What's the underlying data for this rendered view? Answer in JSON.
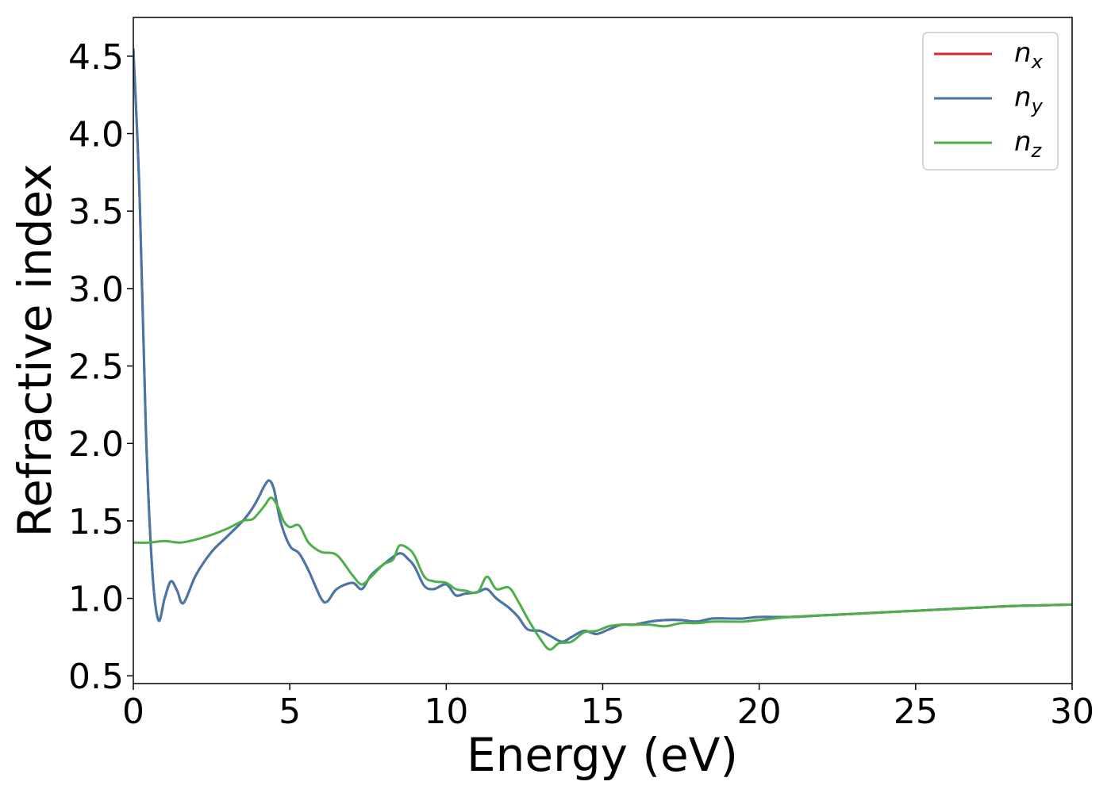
{
  "chart_data": {
    "type": "line",
    "title": "",
    "xlabel": "Energy (eV)",
    "ylabel": "Refractive index",
    "xlim": [
      0,
      30
    ],
    "ylim": [
      0.45,
      4.75
    ],
    "xticks": [
      0,
      5,
      10,
      15,
      20,
      25,
      30
    ],
    "xtick_labels": [
      "0",
      "5",
      "10",
      "15",
      "20",
      "25",
      "30"
    ],
    "yticks": [
      0.5,
      1.0,
      1.5,
      2.0,
      2.5,
      3.0,
      3.5,
      4.0,
      4.5
    ],
    "ytick_labels": [
      "0.5",
      "1.0",
      "1.5",
      "2.0",
      "2.5",
      "3.0",
      "3.5",
      "4.0",
      "4.5"
    ],
    "grid": false,
    "legend_position": "top-right",
    "series": [
      {
        "name": "n_x",
        "legend_base": "n",
        "legend_sub": "x",
        "color": "#d62728",
        "x": [
          0,
          0.2,
          0.4,
          0.6,
          0.8,
          1.0,
          1.2,
          1.4,
          1.6,
          2.0,
          2.5,
          3.0,
          3.5,
          3.8,
          4.0,
          4.2,
          4.35,
          4.5,
          4.7,
          5.0,
          5.3,
          5.6,
          6.0,
          6.2,
          6.5,
          7.0,
          7.3,
          7.6,
          8.0,
          8.5,
          8.8,
          9.0,
          9.3,
          9.6,
          10.0,
          10.3,
          10.6,
          11.0,
          11.3,
          11.6,
          12.0,
          12.3,
          12.6,
          13.0,
          13.3,
          13.7,
          14.0,
          14.4,
          14.8,
          15.2,
          15.6,
          16.0,
          16.5,
          17.0,
          17.5,
          18.0,
          18.5,
          19.0,
          19.5,
          20.0,
          21.0,
          22.0,
          23.0,
          24.0,
          25.0,
          26.0,
          27.0,
          28.0,
          29.0,
          30.0
        ],
        "y": [
          4.55,
          3.6,
          2.1,
          1.2,
          0.86,
          1.0,
          1.11,
          1.05,
          0.97,
          1.15,
          1.3,
          1.4,
          1.5,
          1.58,
          1.65,
          1.73,
          1.76,
          1.7,
          1.5,
          1.34,
          1.29,
          1.18,
          1.0,
          0.98,
          1.06,
          1.1,
          1.06,
          1.15,
          1.22,
          1.29,
          1.25,
          1.2,
          1.08,
          1.06,
          1.09,
          1.02,
          1.03,
          1.04,
          1.06,
          1.0,
          0.94,
          0.88,
          0.8,
          0.79,
          0.76,
          0.72,
          0.75,
          0.79,
          0.77,
          0.8,
          0.83,
          0.83,
          0.85,
          0.86,
          0.86,
          0.85,
          0.87,
          0.87,
          0.87,
          0.88,
          0.88,
          0.89,
          0.9,
          0.91,
          0.92,
          0.93,
          0.94,
          0.95,
          0.955,
          0.96
        ]
      },
      {
        "name": "n_y",
        "legend_base": "n",
        "legend_sub": "y",
        "color": "#4477aa",
        "x": [
          0,
          0.2,
          0.4,
          0.6,
          0.8,
          1.0,
          1.2,
          1.4,
          1.6,
          2.0,
          2.5,
          3.0,
          3.5,
          3.8,
          4.0,
          4.2,
          4.35,
          4.5,
          4.7,
          5.0,
          5.3,
          5.6,
          6.0,
          6.2,
          6.5,
          7.0,
          7.3,
          7.6,
          8.0,
          8.5,
          8.8,
          9.0,
          9.3,
          9.6,
          10.0,
          10.3,
          10.6,
          11.0,
          11.3,
          11.6,
          12.0,
          12.3,
          12.6,
          13.0,
          13.3,
          13.7,
          14.0,
          14.4,
          14.8,
          15.2,
          15.6,
          16.0,
          16.5,
          17.0,
          17.5,
          18.0,
          18.5,
          19.0,
          19.5,
          20.0,
          21.0,
          22.0,
          23.0,
          24.0,
          25.0,
          26.0,
          27.0,
          28.0,
          29.0,
          30.0
        ],
        "y": [
          4.55,
          3.6,
          2.1,
          1.2,
          0.86,
          1.0,
          1.11,
          1.05,
          0.97,
          1.15,
          1.3,
          1.4,
          1.5,
          1.58,
          1.65,
          1.73,
          1.76,
          1.7,
          1.5,
          1.34,
          1.29,
          1.18,
          1.0,
          0.98,
          1.06,
          1.1,
          1.06,
          1.15,
          1.22,
          1.29,
          1.25,
          1.2,
          1.08,
          1.06,
          1.09,
          1.02,
          1.03,
          1.04,
          1.06,
          1.0,
          0.94,
          0.88,
          0.8,
          0.79,
          0.76,
          0.72,
          0.75,
          0.79,
          0.77,
          0.8,
          0.83,
          0.83,
          0.85,
          0.86,
          0.86,
          0.85,
          0.87,
          0.87,
          0.87,
          0.88,
          0.88,
          0.89,
          0.9,
          0.91,
          0.92,
          0.93,
          0.94,
          0.95,
          0.955,
          0.96
        ]
      },
      {
        "name": "n_z",
        "legend_base": "n",
        "legend_sub": "z",
        "color": "#4daf4a",
        "x": [
          0,
          0.5,
          1.0,
          1.5,
          2.0,
          2.5,
          3.0,
          3.5,
          3.8,
          4.0,
          4.2,
          4.4,
          4.6,
          4.8,
          5.0,
          5.3,
          5.6,
          6.0,
          6.5,
          7.0,
          7.3,
          7.6,
          8.0,
          8.3,
          8.5,
          8.8,
          9.0,
          9.3,
          9.6,
          10.0,
          10.3,
          10.6,
          11.0,
          11.3,
          11.6,
          12.0,
          12.3,
          12.6,
          13.0,
          13.3,
          13.6,
          14.0,
          14.4,
          14.8,
          15.2,
          15.6,
          16.0,
          16.5,
          17.0,
          17.5,
          18.0,
          18.5,
          19.0,
          19.5,
          20.0,
          21.0,
          22.0,
          23.0,
          24.0,
          25.0,
          26.0,
          27.0,
          28.0,
          29.0,
          30.0
        ],
        "y": [
          1.36,
          1.36,
          1.37,
          1.36,
          1.38,
          1.41,
          1.45,
          1.5,
          1.51,
          1.55,
          1.6,
          1.65,
          1.6,
          1.5,
          1.46,
          1.47,
          1.36,
          1.3,
          1.28,
          1.15,
          1.09,
          1.14,
          1.22,
          1.25,
          1.34,
          1.32,
          1.27,
          1.14,
          1.11,
          1.1,
          1.06,
          1.05,
          1.04,
          1.14,
          1.06,
          1.07,
          0.98,
          0.87,
          0.74,
          0.67,
          0.71,
          0.72,
          0.78,
          0.79,
          0.82,
          0.83,
          0.83,
          0.83,
          0.82,
          0.84,
          0.84,
          0.85,
          0.85,
          0.85,
          0.86,
          0.88,
          0.89,
          0.9,
          0.91,
          0.92,
          0.93,
          0.94,
          0.95,
          0.955,
          0.96
        ]
      }
    ]
  }
}
